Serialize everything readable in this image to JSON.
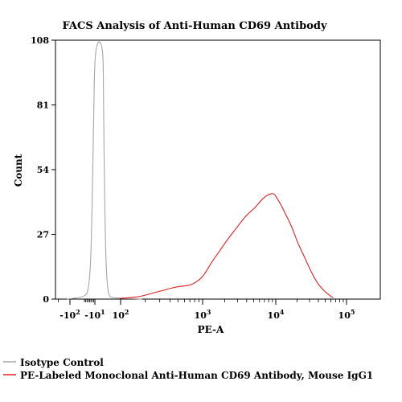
{
  "chart_data": {
    "type": "line",
    "title": "FACS Analysis of Anti-Human CD69 Antibody",
    "xlabel": "PE-A",
    "ylabel": "Count",
    "x_scale": "biexponential",
    "ylim": [
      0,
      108
    ],
    "y_ticks": [
      {
        "value": 0,
        "label": "0"
      },
      {
        "value": 27,
        "label": "27"
      },
      {
        "value": 54,
        "label": "54"
      },
      {
        "value": 81,
        "label": "81"
      },
      {
        "value": 108,
        "label": "108"
      }
    ],
    "x_ticks": [
      {
        "value": -100,
        "base": "-10",
        "exp": "2"
      },
      {
        "value": -10,
        "base": "-10",
        "exp": "1"
      },
      {
        "value": 100,
        "base": "10",
        "exp": "2"
      },
      {
        "value": 1000,
        "base": "10",
        "exp": "3"
      },
      {
        "value": 10000,
        "base": "10",
        "exp": "4"
      },
      {
        "value": 100000,
        "base": "10",
        "exp": "5"
      }
    ],
    "grid": false,
    "legend_position": "bottom",
    "series": [
      {
        "name": "Isotype Control",
        "color": "#a6a6a6",
        "x": [
          -120,
          -80,
          -60,
          -45,
          -35,
          -25,
          -18,
          -12,
          -8,
          -4,
          0,
          5,
          10,
          18,
          28,
          40,
          55,
          70,
          90,
          110,
          140,
          180
        ],
        "y": [
          0,
          1,
          4,
          12,
          28,
          55,
          80,
          98,
          106,
          108,
          104,
          92,
          72,
          48,
          25,
          11,
          4,
          1.5,
          0.6,
          0.3,
          0.2,
          0
        ]
      },
      {
        "name": "PE-Labeled Monoclonal Anti-Human CD69 Antibody, Mouse IgG1",
        "color": "#e02020",
        "x": [
          100,
          130,
          170,
          220,
          280,
          360,
          460,
          600,
          750,
          1000,
          1300,
          1700,
          2200,
          2800,
          3500,
          4300,
          5200,
          6200,
          7300,
          8500,
          9500,
          10500,
          12000,
          14000,
          17000,
          20000,
          25000,
          31000,
          38000,
          46000,
          55000,
          65000
        ],
        "y": [
          0.3,
          0.6,
          1.0,
          2.0,
          3.0,
          4.0,
          5.0,
          5.5,
          6.0,
          9.0,
          15.0,
          20.0,
          25.0,
          29.0,
          33.0,
          36.0,
          38.0,
          41.0,
          43.0,
          44.0,
          44.0,
          42.0,
          39.0,
          35.0,
          30.0,
          24.0,
          18.0,
          12.0,
          7.0,
          4.0,
          2.0,
          0.5
        ]
      }
    ]
  }
}
